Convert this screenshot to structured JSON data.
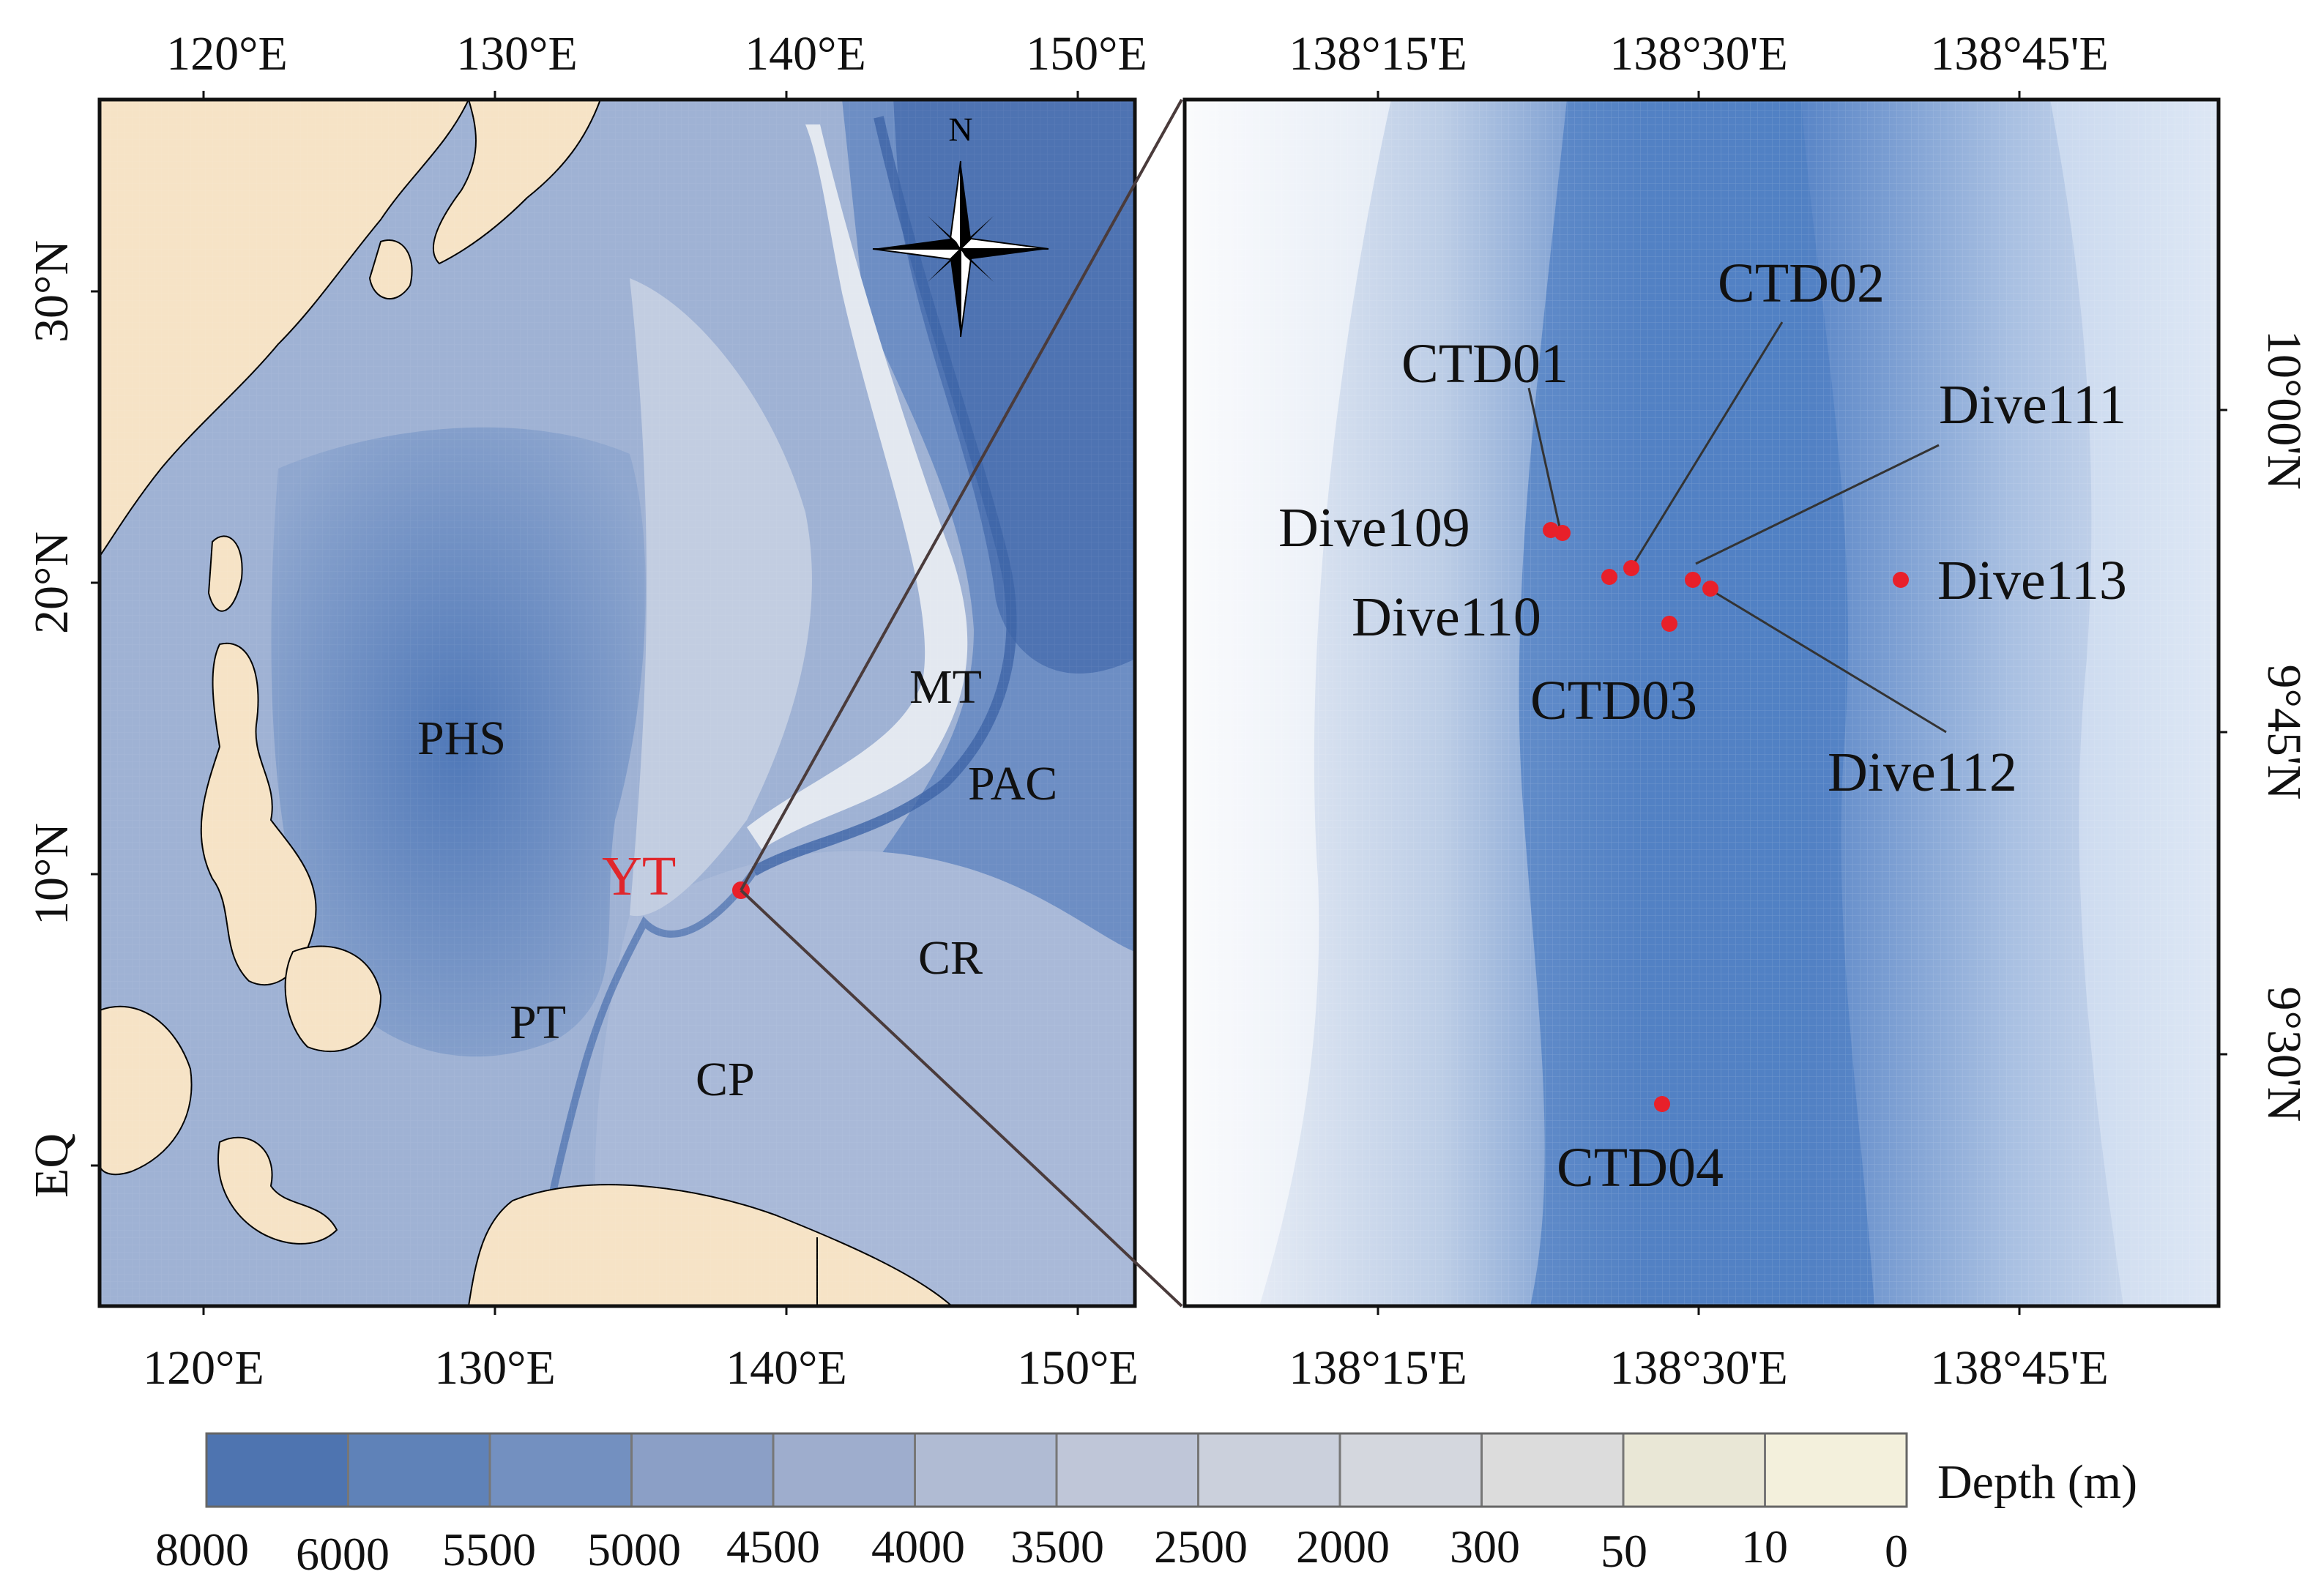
{
  "colors": {
    "land": "#f6e3c6",
    "deep_ocean": "#4f77b3",
    "ridge": "#dfe3ea",
    "marker": "#e8202a",
    "yt_label": "#e0262b",
    "frame": "#111111"
  },
  "left_map": {
    "top_ticks": [
      "120°E",
      "130°E",
      "140°E",
      "150°E"
    ],
    "bottom_ticks": [
      "120°E",
      "130°E",
      "140°E",
      "150°E"
    ],
    "left_ticks": [
      "30°N",
      "20°N",
      "10°N",
      "EQ"
    ],
    "north_arrow": "N",
    "regions": [
      {
        "label": "PHS"
      },
      {
        "label": "MT"
      },
      {
        "label": "PAC"
      },
      {
        "label": "CR"
      },
      {
        "label": "PT"
      },
      {
        "label": "CP"
      }
    ],
    "highlight_label": "YT"
  },
  "right_map": {
    "top_ticks": [
      "138°15'E",
      "138°30'E",
      "138°45'E"
    ],
    "bottom_ticks": [
      "138°15'E",
      "138°30'E",
      "138°45'E"
    ],
    "right_ticks": [
      "10°00'N",
      "9°45'N",
      "9°30'N"
    ],
    "stations": [
      {
        "label": "CTD01"
      },
      {
        "label": "CTD02"
      },
      {
        "label": "Dive111"
      },
      {
        "label": "Dive109"
      },
      {
        "label": "Dive110"
      },
      {
        "label": "Dive113"
      },
      {
        "label": "CTD03"
      },
      {
        "label": "Dive112"
      },
      {
        "label": "CTD04"
      }
    ]
  },
  "legend": {
    "title": "Depth (m)",
    "labels": [
      "8000",
      "6000",
      "5500",
      "5000",
      "4500",
      "4000",
      "3500",
      "2500",
      "2000",
      "300",
      "50",
      "10",
      "0"
    ],
    "swatches": [
      "#4e74b0",
      "#5f82b8",
      "#7390c0",
      "#8b9fc6",
      "#9eadcd",
      "#b0bbd3",
      "#bfc6d8",
      "#cbd0dc",
      "#d4d7de",
      "#dcdcdc",
      "#e9e7d6",
      "#f3f0dc"
    ]
  }
}
